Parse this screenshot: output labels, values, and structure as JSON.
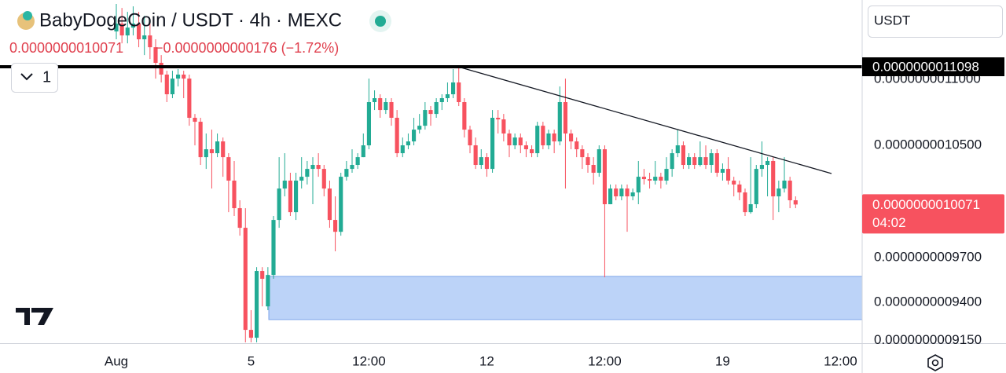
{
  "chart_data": {
    "type": "candlestick",
    "title": "BabyDogeCoin / USDT · 4h · MEXC",
    "price_text": "0.0000000010071",
    "change_text": "−0.0000000000176 (−1.72%)",
    "indicator_count": "1",
    "currency": "USDT",
    "log_scale": true,
    "grid": false,
    "up_color": "#22ab94",
    "down_color": "#f7525f",
    "x": [
      0,
      1,
      2,
      3,
      4,
      5,
      6,
      7,
      8,
      9,
      10,
      11,
      12,
      13,
      14,
      15,
      16,
      17,
      18,
      19,
      20,
      21,
      22,
      23,
      24,
      25,
      26,
      27,
      28,
      29,
      30,
      31,
      32,
      33,
      34,
      35,
      36,
      37,
      38,
      39,
      40,
      41,
      42,
      43,
      44,
      45,
      46,
      47,
      48,
      49,
      50,
      51,
      52,
      53,
      54,
      55,
      56,
      57,
      58,
      59,
      60,
      61,
      62,
      63,
      64,
      65,
      66,
      67,
      68,
      69,
      70,
      71,
      72,
      73,
      74,
      75,
      76,
      77,
      78,
      79,
      80,
      81,
      82,
      83,
      84,
      85,
      86,
      87,
      88,
      89,
      90,
      91,
      92,
      93,
      94,
      95,
      96,
      97,
      98,
      99,
      100,
      101,
      102,
      103,
      104,
      105,
      106,
      107,
      108,
      109,
      110,
      111,
      112,
      113,
      114,
      115,
      116,
      117,
      118,
      119,
      120,
      121
    ],
    "open": [
      1.1378e-09,
      1.1441e-09,
      1.1346e-09,
      1.1409e-09,
      1.1441e-09,
      1.1315e-09,
      1.1346e-09,
      1.1252e-09,
      1.1129e-09,
      1.1037e-09,
      1.0885e-09,
      1.1006e-09,
      1.1037e-09,
      1.1006e-09,
      1.0706e-09,
      1.0676e-09,
      1.0413e-09,
      1.0471e-09,
      1.0442e-09,
      1.0529e-09,
      1.0413e-09,
      1.0242e-09,
      1.0045e-09,
      9.907e-10,
      9.219e-10,
      9.168e-10,
      9.61e-10,
      9.373e-10,
      9.583e-10,
      9.962e-10,
      1.0185e-09,
      1.0242e-09,
      1.0017e-09,
      1.0242e-09,
      1.027e-09,
      1.0327e-09,
      1.0356e-09,
      1.0327e-09,
      1.0185e-09,
      9.962e-10,
      9.879e-10,
      1.027e-09,
      1.0327e-09,
      1.0356e-09,
      1.0413e-09,
      1.05e-09,
      1.0825e-09,
      1.0855e-09,
      1.0765e-09,
      1.0825e-09,
      1.0706e-09,
      1.0442e-09,
      1.05e-09,
      1.0529e-09,
      1.0617e-09,
      1.0646e-09,
      1.0765e-09,
      1.0735e-09,
      1.0825e-09,
      1.0855e-09,
      1.0885e-09,
      1.0976e-09,
      1.0825e-09,
      1.0617e-09,
      1.05e-09,
      1.0356e-09,
      1.0413e-09,
      1.0327e-09,
      1.0706e-09,
      1.0694e-09,
      1.0588e-09,
      1.05e-09,
      1.0558e-09,
      1.05e-09,
      1.0471e-09,
      1.0442e-09,
      1.0646e-09,
      1.05e-09,
      1.0588e-09,
      1.0529e-09,
      1.0825e-09,
      1.0588e-09,
      1.0529e-09,
      1.0471e-09,
      1.0413e-09,
      1.0356e-09,
      1.0299e-09,
      1.0471e-09,
      1.0073e-09,
      1.0185e-09,
      1.0129e-09,
      1.0185e-09,
      1.0129e-09,
      1.0157e-09,
      1.027e-09,
      1.0253e-09,
      1.0242e-09,
      1.027e-09,
      1.0242e-09,
      1.0327e-09,
      1.0442e-09,
      1.05e-09,
      1.0356e-09,
      1.0413e-09,
      1.0356e-09,
      1.0413e-09,
      1.0356e-09,
      1.0442e-09,
      1.0299e-09,
      1.0327e-09,
      1.0242e-09,
      1.0214e-09,
      1.0157e-09,
      1.0017e-09,
      1.0073e-09,
      1.0327e-09,
      1.0356e-09,
      1.0385e-09,
      1.0129e-09,
      1.0185e-09,
      1.0242e-09,
      1.0101e-09
    ],
    "high": [
      1.1601e-09,
      1.1568e-09,
      1.1536e-09,
      1.1581e-09,
      1.1536e-09,
      1.1504e-09,
      1.1472e-09,
      1.1315e-09,
      1.119e-09,
      1.1067e-09,
      1.1067e-09,
      1.108e-09,
      1.1067e-09,
      1.1037e-09,
      1.0735e-09,
      1.0706e-09,
      1.0588e-09,
      1.0617e-09,
      1.0588e-09,
      1.0558e-09,
      1.0442e-09,
      1.0385e-09,
      1.0101e-09,
      1.0045e-09,
      9.348e-10,
      9.636e-10,
      9.636e-10,
      9.636e-10,
      9.99e-10,
      1.0413e-09,
      1.0442e-09,
      1.0299e-09,
      1.0299e-09,
      1.0413e-09,
      1.0385e-09,
      1.0413e-09,
      1.0442e-09,
      1.0356e-09,
      1.0242e-09,
      1.0129e-09,
      1.0299e-09,
      1.0385e-09,
      1.0471e-09,
      1.0442e-09,
      1.0588e-09,
      1.1006e-09,
      1.0915e-09,
      1.0885e-09,
      1.0855e-09,
      1.0855e-09,
      1.0765e-09,
      1.0558e-09,
      1.0588e-09,
      1.0706e-09,
      1.0735e-09,
      1.0825e-09,
      1.0795e-09,
      1.0855e-09,
      1.0885e-09,
      1.0976e-09,
      1.108e-09,
      1.1092e-09,
      1.0855e-09,
      1.0646e-09,
      1.0558e-09,
      1.0471e-09,
      1.0442e-09,
      1.0765e-09,
      1.0765e-09,
      1.0735e-09,
      1.0617e-09,
      1.0588e-09,
      1.0588e-09,
      1.0529e-09,
      1.05e-09,
      1.0676e-09,
      1.0676e-09,
      1.0617e-09,
      1.0617e-09,
      1.0945e-09,
      1.1006e-09,
      1.0617e-09,
      1.0558e-09,
      1.05e-09,
      1.0442e-09,
      1.0413e-09,
      1.05e-09,
      1.05e-09,
      1.0214e-09,
      1.0214e-09,
      1.0214e-09,
      1.0214e-09,
      1.0185e-09,
      1.0385e-09,
      1.0327e-09,
      1.0299e-09,
      1.0385e-09,
      1.0299e-09,
      1.0413e-09,
      1.0471e-09,
      1.0617e-09,
      1.0529e-09,
      1.0442e-09,
      1.0442e-09,
      1.0529e-09,
      1.05e-09,
      1.0471e-09,
      1.0471e-09,
      1.0367e-09,
      1.0413e-09,
      1.027e-09,
      1.0242e-09,
      1.0185e-09,
      1.0413e-09,
      1.0356e-09,
      1.0529e-09,
      1.0413e-09,
      1.0413e-09,
      1.0242e-09,
      1.0413e-09,
      1.027e-09,
      1.0129e-09
    ],
    "low": [
      1.1315e-09,
      1.1283e-09,
      1.1283e-09,
      1.1346e-09,
      1.1252e-09,
      1.119e-09,
      1.1159e-09,
      1.1006e-09,
      1.0976e-09,
      1.0825e-09,
      1.0855e-09,
      1.0945e-09,
      1.0855e-09,
      1.0646e-09,
      1.05e-09,
      1.0356e-09,
      1.0327e-09,
      1.0185e-09,
      1.0413e-09,
      1.027e-09,
      1.0017e-09,
      9.99e-10,
      9.852e-10,
      9.138e-10,
      9.138e-10,
      9.138e-10,
      9.373e-10,
      9.348e-10,
      9.557e-10,
      9.907e-10,
      1.0129e-09,
      9.99e-10,
      9.962e-10,
      1.0185e-09,
      1.0214e-09,
      1.0073e-09,
      1.027e-09,
      1.0129e-09,
      9.907e-10,
      9.744e-10,
      9.852e-10,
      1.0242e-09,
      1.0299e-09,
      1.0327e-09,
      1.0413e-09,
      1.0471e-09,
      1.0765e-09,
      1.0706e-09,
      1.0735e-09,
      1.0646e-09,
      1.0413e-09,
      1.0413e-09,
      1.0471e-09,
      1.05e-09,
      1.0588e-09,
      1.0617e-09,
      1.0646e-09,
      1.0706e-09,
      1.0765e-09,
      1.0825e-09,
      1.0855e-09,
      1.0795e-09,
      1.0558e-09,
      1.0442e-09,
      1.0327e-09,
      1.0327e-09,
      1.027e-09,
      1.0299e-09,
      1.0588e-09,
      1.0529e-09,
      1.0413e-09,
      1.0471e-09,
      1.0442e-09,
      1.0413e-09,
      1.0413e-09,
      1.0413e-09,
      1.0471e-09,
      1.0471e-09,
      1.0442e-09,
      1.05e-09,
      1.0185e-09,
      1.0471e-09,
      1.0413e-09,
      1.0327e-09,
      1.0299e-09,
      1.0214e-09,
      1.027e-09,
      9.567e-10,
      1.0073e-09,
      1.0101e-09,
      1.0101e-09,
      9.879e-10,
      1.0101e-09,
      1.0073e-09,
      1.0214e-09,
      1.0185e-09,
      1.0214e-09,
      1.0185e-09,
      1.0214e-09,
      1.027e-09,
      1.0413e-09,
      1.0327e-09,
      1.0327e-09,
      1.0327e-09,
      1.0345e-09,
      1.0327e-09,
      1.0299e-09,
      1.027e-09,
      1.0242e-09,
      1.0214e-09,
      1.0129e-09,
      1.0101e-09,
      9.99e-10,
      1.0006e-09,
      1.0045e-09,
      1.027e-09,
      1.0129e-09,
      9.962e-10,
      1.0017e-09,
      1.0157e-09,
      1.0045e-09,
      1.0045e-09
    ],
    "close": [
      1.1441e-09,
      1.1346e-09,
      1.1409e-09,
      1.1441e-09,
      1.1315e-09,
      1.1346e-09,
      1.1252e-09,
      1.1129e-09,
      1.1037e-09,
      1.0885e-09,
      1.1006e-09,
      1.1037e-09,
      1.1006e-09,
      1.0706e-09,
      1.0676e-09,
      1.0413e-09,
      1.0471e-09,
      1.0442e-09,
      1.0529e-09,
      1.0413e-09,
      1.0242e-09,
      1.0045e-09,
      9.907e-10,
      9.219e-10,
      9.168e-10,
      9.61e-10,
      9.557e-10,
      9.583e-10,
      9.962e-10,
      1.0185e-09,
      1.0242e-09,
      1.0017e-09,
      1.0242e-09,
      1.027e-09,
      1.0327e-09,
      1.0356e-09,
      1.0327e-09,
      1.0185e-09,
      9.962e-10,
      9.879e-10,
      1.027e-09,
      1.0327e-09,
      1.0356e-09,
      1.0413e-09,
      1.05e-09,
      1.0825e-09,
      1.0855e-09,
      1.0765e-09,
      1.0825e-09,
      1.0706e-09,
      1.0442e-09,
      1.05e-09,
      1.0529e-09,
      1.0617e-09,
      1.0646e-09,
      1.0765e-09,
      1.0735e-09,
      1.0825e-09,
      1.0855e-09,
      1.0885e-09,
      1.0976e-09,
      1.0825e-09,
      1.0617e-09,
      1.05e-09,
      1.0356e-09,
      1.0413e-09,
      1.0327e-09,
      1.0706e-09,
      1.0694e-09,
      1.0588e-09,
      1.05e-09,
      1.0558e-09,
      1.05e-09,
      1.0471e-09,
      1.0442e-09,
      1.0646e-09,
      1.05e-09,
      1.0588e-09,
      1.0529e-09,
      1.0825e-09,
      1.0588e-09,
      1.0529e-09,
      1.0471e-09,
      1.0413e-09,
      1.0356e-09,
      1.0299e-09,
      1.0471e-09,
      1.0073e-09,
      1.0185e-09,
      1.0129e-09,
      1.0185e-09,
      1.0129e-09,
      1.0157e-09,
      1.027e-09,
      1.0253e-09,
      1.0242e-09,
      1.027e-09,
      1.0242e-09,
      1.0327e-09,
      1.0442e-09,
      1.05e-09,
      1.0356e-09,
      1.0413e-09,
      1.0356e-09,
      1.0413e-09,
      1.0356e-09,
      1.0442e-09,
      1.0299e-09,
      1.0327e-09,
      1.0242e-09,
      1.0214e-09,
      1.0157e-09,
      1.0017e-09,
      1.0073e-09,
      1.0327e-09,
      1.0356e-09,
      1.0385e-09,
      1.0129e-09,
      1.0185e-09,
      1.0242e-09,
      1.0101e-09,
      1.0071e-09
    ],
    "xlim": [
      -20.72,
      132.86
    ],
    "xticks": [
      {
        "value": 0,
        "label": "Aug"
      },
      {
        "value": 24,
        "label": "5"
      },
      {
        "value": 45,
        "label": "12:00"
      },
      {
        "value": 66,
        "label": "12"
      },
      {
        "value": 87,
        "label": "12:00"
      },
      {
        "value": 108,
        "label": "19"
      },
      {
        "value": 129,
        "label": "12:00"
      }
    ],
    "ylim": [
      9.133e-10,
      1.1633e-09
    ],
    "yticks": [
      {
        "value": 1.1e-09,
        "label": "0.0000000011000"
      },
      {
        "value": 1.05e-09,
        "label": "0.0000000010500"
      },
      {
        "value": 9.7e-10,
        "label": "0.0000000009700"
      },
      {
        "value": 9.4e-10,
        "label": "0.0000000009400"
      },
      {
        "value": 9.15e-10,
        "label": "0.0000000009150"
      }
    ],
    "hline": {
      "value": 1.1098e-09,
      "label": "0.0000000011098"
    },
    "last_price": {
      "value": 1.0071e-09,
      "label": "0.0000000010071"
    },
    "countdown": "04:02"
  }
}
